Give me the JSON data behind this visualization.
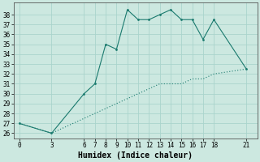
{
  "xlabel": "Humidex (Indice chaleur)",
  "line1_x": [
    0,
    3,
    6,
    7,
    8,
    9,
    10,
    11,
    12,
    13,
    14,
    15,
    16,
    17,
    18,
    21
  ],
  "line1_y": [
    27,
    26,
    30,
    31,
    35,
    34.5,
    38.5,
    37.5,
    37.5,
    38,
    38.5,
    37.5,
    37.5,
    35.5,
    37.5,
    32.5
  ],
  "line2_x": [
    0,
    3,
    6,
    7,
    8,
    9,
    10,
    11,
    12,
    13,
    14,
    15,
    16,
    17,
    18,
    21
  ],
  "line2_y": [
    27,
    26,
    27.5,
    28,
    28.5,
    29,
    29.5,
    30,
    30.5,
    31,
    31,
    31,
    31.5,
    31.5,
    32,
    32.5
  ],
  "line_color": "#1a7a6e",
  "bg_color": "#cce8e0",
  "grid_color": "#aad4cc",
  "ylim": [
    25.5,
    39.2
  ],
  "xlim": [
    -0.5,
    22
  ],
  "yticks": [
    26,
    27,
    28,
    29,
    30,
    31,
    32,
    33,
    34,
    35,
    36,
    37,
    38
  ],
  "xticks": [
    0,
    3,
    6,
    7,
    8,
    9,
    10,
    11,
    12,
    13,
    14,
    15,
    16,
    17,
    18,
    21
  ],
  "tick_fontsize": 5.5,
  "label_fontsize": 7
}
